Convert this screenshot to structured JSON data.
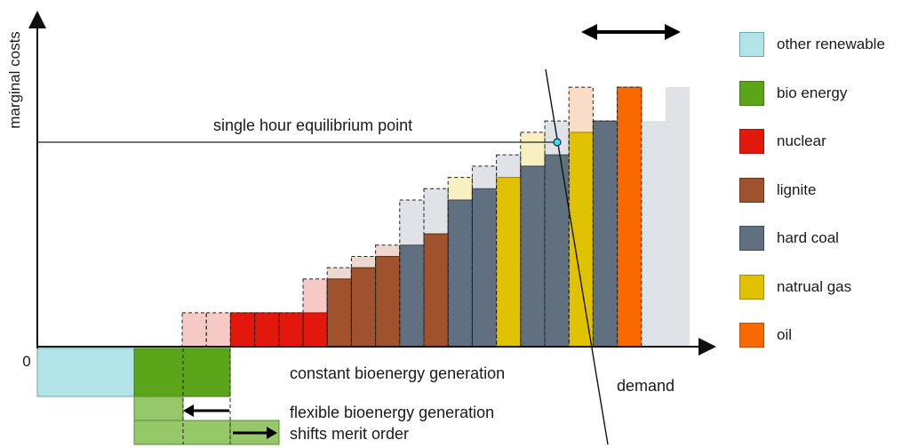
{
  "axes": {
    "y_label": "marginal costs",
    "origin_label": "0"
  },
  "annotations": {
    "equilibrium": "single hour equilibrium point",
    "constant_bio": "constant bioenergy generation",
    "flexible_bio": "flexible bioenergy generation",
    "shifts": "shifts merit order",
    "demand": "demand"
  },
  "legend": [
    {
      "key": "other-renewable",
      "label": "other renewable",
      "color": "#b3e4e8"
    },
    {
      "key": "bio-energy",
      "label": "bio energy",
      "color": "#5aa519"
    },
    {
      "key": "nuclear",
      "label": "nuclear",
      "color": "#e3180d"
    },
    {
      "key": "lignite",
      "label": "lignite",
      "color": "#a0522d"
    },
    {
      "key": "hard-coal",
      "label": "hard coal",
      "color": "#607080"
    },
    {
      "key": "natural-gas",
      "label": "natrual gas",
      "color": "#e0c200"
    },
    {
      "key": "oil",
      "label": "oil",
      "color": "#fa6800"
    }
  ],
  "chart_data": {
    "type": "merit-order bar",
    "y_unit": "relative marginal cost",
    "flexible_bio_color": "#96c86a",
    "negative_blocks": [
      {
        "tech": "other renewable",
        "units": 4,
        "level": -2
      },
      {
        "tech": "bio energy",
        "units": 4,
        "level": -2
      },
      {
        "tech": "flexible bio energy",
        "units": 6,
        "level": -1
      },
      {
        "tech": "flexible bio energy",
        "units": 6,
        "level": -1
      }
    ],
    "shifted_supply": [
      {
        "tech": "nuclear",
        "value": 15
      },
      {
        "tech": "nuclear",
        "value": 15
      },
      {
        "tech": "nuclear",
        "value": 15
      },
      {
        "tech": "nuclear",
        "value": 15
      },
      {
        "tech": "lignite",
        "value": 30
      },
      {
        "tech": "lignite",
        "value": 35
      },
      {
        "tech": "lignite",
        "value": 40
      },
      {
        "tech": "hard coal",
        "value": 45
      },
      {
        "tech": "lignite",
        "value": 50
      },
      {
        "tech": "hard coal",
        "value": 65
      },
      {
        "tech": "hard coal",
        "value": 70
      },
      {
        "tech": "natural gas",
        "value": 75
      },
      {
        "tech": "hard coal",
        "value": 80
      },
      {
        "tech": "hard coal",
        "value": 85
      },
      {
        "tech": "natural gas",
        "value": 95
      },
      {
        "tech": "hard coal",
        "value": 100
      },
      {
        "tech": "oil",
        "value": 115
      },
      {
        "tech": "other",
        "value": 100
      },
      {
        "tech": "other",
        "value": 115
      }
    ],
    "original_supply": [
      {
        "tech": "nuclear",
        "value": 15
      },
      {
        "tech": "nuclear",
        "value": 15
      },
      {
        "tech": "nuclear",
        "value": 15
      },
      {
        "tech": "nuclear",
        "value": 15
      },
      {
        "tech": "nuclear",
        "value": 15
      },
      {
        "tech": "nuclear",
        "value": 30
      },
      {
        "tech": "lignite",
        "value": 35
      },
      {
        "tech": "lignite",
        "value": 40
      },
      {
        "tech": "lignite",
        "value": 45
      },
      {
        "tech": "hard coal",
        "value": 65
      },
      {
        "tech": "hard coal",
        "value": 70
      },
      {
        "tech": "natural gas",
        "value": 75
      },
      {
        "tech": "hard coal",
        "value": 80
      },
      {
        "tech": "hard coal",
        "value": 85
      },
      {
        "tech": "natural gas",
        "value": 95
      },
      {
        "tech": "hard coal",
        "value": 100
      },
      {
        "tech": "oil",
        "value": 115
      },
      {
        "tech": "hard coal",
        "value": 100
      },
      {
        "tech": "oil",
        "value": 115
      }
    ],
    "equilibrium_value": 85,
    "y_max": 130
  }
}
